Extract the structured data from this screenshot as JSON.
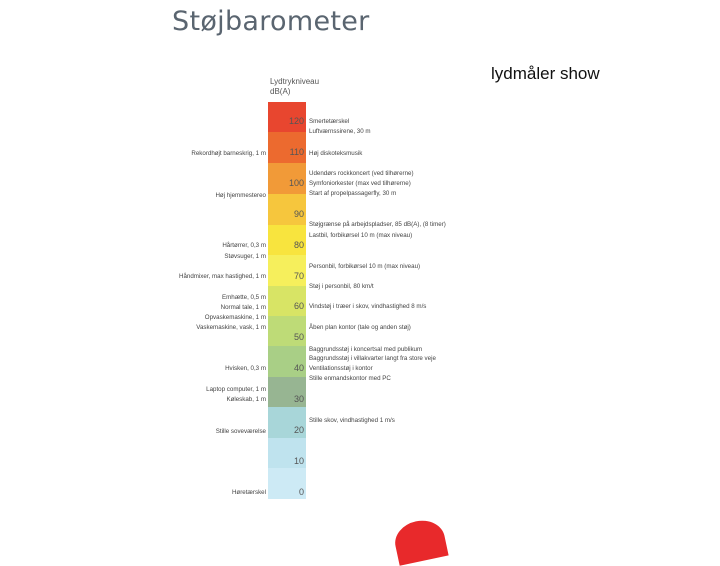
{
  "title": "Støjbarometer",
  "side_caption": "lydmåler show",
  "unit_label": [
    "Lydtrykniveau",
    "dB(A)"
  ],
  "scale": [
    {
      "value": "120",
      "color": "#e8462f"
    },
    {
      "value": "110",
      "color": "#ec6a2f"
    },
    {
      "value": "100",
      "color": "#f19a38"
    },
    {
      "value": "90",
      "color": "#f6c63d"
    },
    {
      "value": "80",
      "color": "#f8e43e"
    },
    {
      "value": "70",
      "color": "#f6ef5c"
    },
    {
      "value": "60",
      "color": "#d8e465"
    },
    {
      "value": "50",
      "color": "#bedb77"
    },
    {
      "value": "40",
      "color": "#a9cf86"
    },
    {
      "value": "30",
      "color": "#97b592"
    },
    {
      "value": "20",
      "color": "#a8d6d9"
    },
    {
      "value": "10",
      "color": "#bfe3ee"
    },
    {
      "value": "0",
      "color": "#cdeaf5"
    }
  ],
  "left_labels": [
    "Rekordhøjt barneskrig, 1 m",
    "Høj hjemmestereo",
    "Hårtørrer, 0,3 m",
    "Støvsuger, 1 m",
    "Håndmixer, max hastighed, 1 m",
    "Emhætte, 0,5 m",
    "Normal tale, 1 m",
    "Opvaskemaskine, 1 m",
    "Vaskemaskine, vask, 1 m",
    "Hvisken, 0,3 m",
    "Laptop computer, 1 m",
    "Køleskab, 1 m",
    "Stille soveværelse",
    "Høretærskel"
  ],
  "right_labels": [
    "Smertetærskel",
    "Luftværnssirene, 30 m",
    "Høj diskoteksmusik",
    "Udendørs rockkoncert (ved tilhørerne)",
    "Symfoniorkester (max ved tilhørerne)",
    "Start af propelpassagerfly, 30 m",
    "Støjgrænse på arbejdspladser, 85 dB(A), (8 timer)",
    "Lastbil, forbikørsel 10 m (max niveau)",
    "Personbil, forbikørsel 10 m (max niveau)",
    "Støj i personbil, 80 km/t",
    "Vindstøj i træer i skov, vindhastighed 8 m/s",
    "Åben plan kontor (tale og anden støj)",
    "Baggrundsstøj i koncertsal med publikum",
    "Baggrundsstøj i villakvarter langt fra store veje",
    "Ventilationsstøj i kontor",
    "Stille enmandskontor med PC",
    "Stille skov, vindhastighed 1 m/s"
  ]
}
